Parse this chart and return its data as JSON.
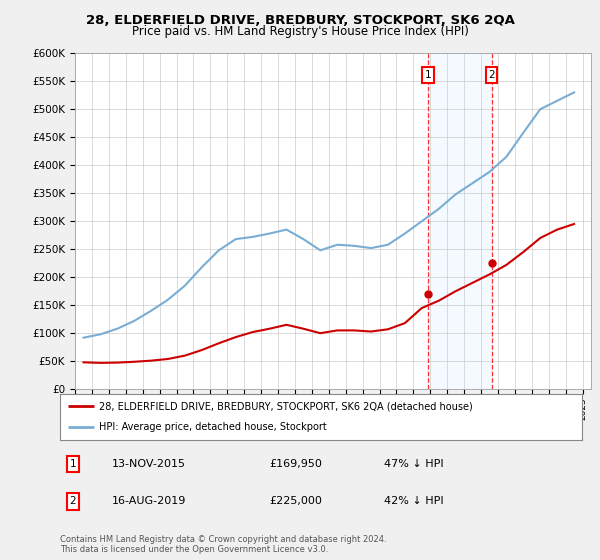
{
  "title": "28, ELDERFIELD DRIVE, BREDBURY, STOCKPORT, SK6 2QA",
  "subtitle": "Price paid vs. HM Land Registry's House Price Index (HPI)",
  "background_color": "#f0f0f0",
  "plot_bg_color": "#ffffff",
  "hpi_color": "#7aadd4",
  "price_color": "#cc0000",
  "ylim": [
    0,
    600000
  ],
  "yticks": [
    0,
    50000,
    100000,
    150000,
    200000,
    250000,
    300000,
    350000,
    400000,
    450000,
    500000,
    550000,
    600000
  ],
  "transaction1": {
    "label": "13-NOV-2015",
    "year": 2015.87,
    "price": 169950,
    "pct": "47% ↓ HPI",
    "num": 1
  },
  "transaction2": {
    "label": "16-AUG-2019",
    "year": 2019.62,
    "price": 225000,
    "pct": "42% ↓ HPI",
    "num": 2
  },
  "legend_address": "28, ELDERFIELD DRIVE, BREDBURY, STOCKPORT, SK6 2QA (detached house)",
  "legend_hpi": "HPI: Average price, detached house, Stockport",
  "footer": "Contains HM Land Registry data © Crown copyright and database right 2024.\nThis data is licensed under the Open Government Licence v3.0.",
  "hpi_data": {
    "years": [
      1995.5,
      1996.5,
      1997.5,
      1998.5,
      1999.5,
      2000.5,
      2001.5,
      2002.5,
      2003.5,
      2004.5,
      2005.5,
      2006.5,
      2007.5,
      2008.5,
      2009.5,
      2010.5,
      2011.5,
      2012.5,
      2013.5,
      2014.5,
      2015.5,
      2016.5,
      2017.5,
      2018.5,
      2019.5,
      2020.5,
      2021.5,
      2022.5,
      2023.5,
      2024.5
    ],
    "values": [
      92000,
      98000,
      108000,
      122000,
      140000,
      160000,
      185000,
      218000,
      248000,
      268000,
      272000,
      278000,
      285000,
      268000,
      248000,
      258000,
      256000,
      252000,
      258000,
      278000,
      300000,
      322000,
      348000,
      368000,
      388000,
      415000,
      458000,
      500000,
      515000,
      530000
    ]
  },
  "price_data": {
    "years": [
      1995.5,
      1996.5,
      1997.5,
      1998.5,
      1999.5,
      2000.5,
      2001.5,
      2002.5,
      2003.5,
      2004.5,
      2005.5,
      2006.5,
      2007.5,
      2008.5,
      2009.5,
      2010.5,
      2011.5,
      2012.5,
      2013.5,
      2014.5,
      2015.5,
      2016.5,
      2017.5,
      2018.5,
      2019.5,
      2020.5,
      2021.5,
      2022.5,
      2023.5,
      2024.5
    ],
    "values": [
      48000,
      47000,
      47500,
      49000,
      51000,
      54000,
      60000,
      70000,
      82000,
      93000,
      102000,
      108000,
      115000,
      108000,
      100000,
      105000,
      105000,
      103000,
      107000,
      118000,
      145000,
      158000,
      175000,
      190000,
      205000,
      222000,
      245000,
      270000,
      285000,
      295000
    ]
  }
}
